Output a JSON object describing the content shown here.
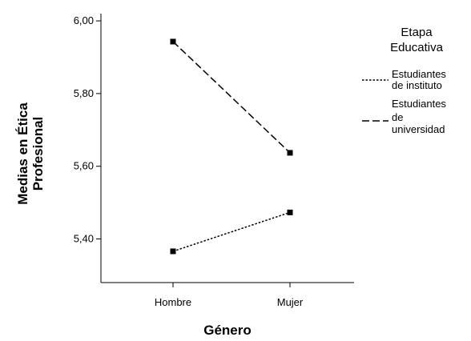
{
  "chart_data": {
    "type": "line",
    "xlabel": "Género",
    "ylabel_lines": [
      "Medias en Ética",
      "Profesional"
    ],
    "categories": [
      "Hombre",
      "Mujer"
    ],
    "ylim": [
      5.28,
      6.02
    ],
    "yticks": [
      "6,00",
      "5,80",
      "5,60",
      "5,40"
    ],
    "ytick_values": [
      6.0,
      5.8,
      5.6,
      5.4
    ],
    "legend": {
      "title_lines": [
        "Etapa",
        "Educativa"
      ],
      "placement": "right"
    },
    "series": [
      {
        "name_lines": [
          "Estudiantes",
          "de instituto"
        ],
        "style": "dotted",
        "values": [
          5.366,
          5.473
        ]
      },
      {
        "name_lines": [
          "Estudiantes",
          "de",
          "universidad"
        ],
        "style": "dashed",
        "values": [
          5.943,
          5.637
        ]
      }
    ],
    "grid": false,
    "colors": {
      "line": "#000000",
      "axis": "#000000",
      "background": "#ffffff"
    }
  }
}
